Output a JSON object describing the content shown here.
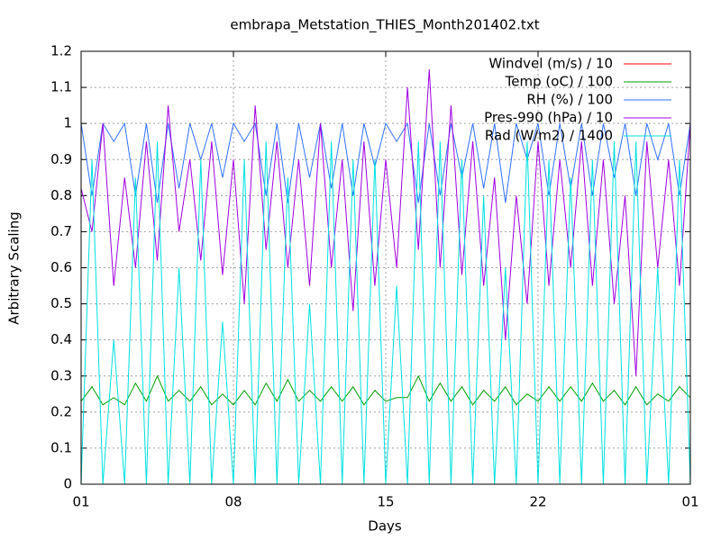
{
  "chart_data": {
    "type": "line",
    "title": "embrapa_Metstation_THIES_Month201402.txt",
    "xlabel": "Days",
    "ylabel": "Arbitrary Scaling",
    "x": [
      0,
      0.5,
      1,
      1.5,
      2,
      2.5,
      3,
      3.5,
      4,
      4.5,
      5,
      5.5,
      6,
      6.5,
      7,
      7.5,
      8,
      8.5,
      9,
      9.5,
      10,
      10.5,
      11,
      11.5,
      12,
      12.5,
      13,
      13.5,
      14,
      14.5,
      15,
      15.5,
      16,
      16.5,
      17,
      17.5,
      18,
      18.5,
      19,
      19.5,
      20,
      20.5,
      21,
      21.5,
      22,
      22.5,
      23,
      23.5,
      24,
      24.5,
      25,
      25.5,
      26,
      26.5,
      27,
      27.5,
      28
    ],
    "xlim": [
      0,
      28
    ],
    "xticks": [
      {
        "value": 0,
        "label": "01"
      },
      {
        "value": 7,
        "label": "08"
      },
      {
        "value": 14,
        "label": "15"
      },
      {
        "value": 21,
        "label": "22"
      },
      {
        "value": 28,
        "label": "01"
      }
    ],
    "ylim": [
      0,
      1.2
    ],
    "yticks": [
      0,
      0.1,
      0.2,
      0.3,
      0.4,
      0.5,
      0.6,
      0.7,
      0.8,
      0.9,
      1,
      1.1,
      1.2
    ],
    "grid": true,
    "legend": "top-right",
    "series": [
      {
        "name": "Windvel (m/s) / 10",
        "color": "#ff0000",
        "values": [
          null,
          null,
          null,
          null,
          null,
          null,
          null,
          null,
          null,
          null,
          null,
          null,
          null,
          null,
          null,
          null,
          null,
          null,
          null,
          null,
          null,
          null,
          null,
          null,
          null,
          null,
          null,
          null,
          null,
          null,
          null,
          null,
          null,
          null,
          null,
          null,
          null,
          null,
          null,
          null,
          null,
          null,
          null,
          null,
          null,
          null,
          null,
          null,
          null,
          null,
          null,
          null,
          null,
          null,
          null,
          null,
          null
        ]
      },
      {
        "name": "Temp (oC) / 100",
        "color": "#00a000",
        "values": [
          0.23,
          0.27,
          0.22,
          0.24,
          0.22,
          0.28,
          0.23,
          0.3,
          0.23,
          0.26,
          0.23,
          0.27,
          0.22,
          0.25,
          0.22,
          0.26,
          0.22,
          0.28,
          0.23,
          0.29,
          0.23,
          0.26,
          0.23,
          0.27,
          0.23,
          0.27,
          0.22,
          0.26,
          0.23,
          0.24,
          0.24,
          0.3,
          0.23,
          0.28,
          0.23,
          0.27,
          0.22,
          0.26,
          0.23,
          0.27,
          0.22,
          0.25,
          0.23,
          0.27,
          0.23,
          0.27,
          0.23,
          0.28,
          0.23,
          0.26,
          0.22,
          0.27,
          0.22,
          0.25,
          0.23,
          0.27,
          0.24
        ]
      },
      {
        "name": "RH (%) / 100",
        "color": "#3070ff",
        "values": [
          1,
          0.8,
          1,
          0.95,
          1,
          0.8,
          1,
          0.78,
          1,
          0.82,
          1,
          0.9,
          1,
          0.85,
          1,
          0.95,
          1,
          0.8,
          1,
          0.78,
          1,
          0.85,
          1,
          0.82,
          1,
          0.8,
          1,
          0.88,
          1,
          0.95,
          1,
          0.78,
          1,
          0.8,
          1,
          0.85,
          1,
          0.82,
          1,
          0.78,
          1,
          0.9,
          1,
          0.8,
          1,
          0.82,
          1,
          0.8,
          1,
          0.85,
          1,
          0.8,
          1,
          0.9,
          1,
          0.8,
          1
        ]
      },
      {
        "name": "Pres-990 (hPa) / 10",
        "color": "#a000e0",
        "values": [
          0.82,
          0.7,
          1,
          0.55,
          0.85,
          0.6,
          0.95,
          0.62,
          1.05,
          0.7,
          0.9,
          0.62,
          0.95,
          0.58,
          0.9,
          0.5,
          1.05,
          0.65,
          0.95,
          0.6,
          0.9,
          0.55,
          1,
          0.6,
          0.9,
          0.48,
          0.95,
          0.55,
          0.9,
          0.6,
          1.1,
          0.65,
          1.15,
          0.6,
          1.05,
          0.58,
          0.95,
          0.55,
          0.85,
          0.4,
          0.8,
          0.5,
          0.95,
          0.55,
          0.9,
          0.6,
          0.95,
          0.55,
          0.9,
          0.5,
          0.8,
          0.3,
          0.95,
          0.6,
          0.9,
          0.55,
          1
        ]
      },
      {
        "name": "Rad (W/m2) / 1400",
        "color": "#00e0e0",
        "values": [
          0,
          0.9,
          0,
          0.4,
          0,
          0.85,
          0,
          0.95,
          0,
          0.6,
          0,
          0.9,
          0,
          0.45,
          0,
          0.9,
          0,
          0.95,
          0,
          0.85,
          0,
          0.5,
          0,
          0.95,
          0,
          0.9,
          0,
          0.9,
          0,
          0.55,
          0,
          0.95,
          0,
          0.95,
          0,
          0.9,
          0,
          0.8,
          0,
          0.6,
          0,
          0.95,
          0,
          0.9,
          0,
          0.85,
          0,
          0.9,
          0,
          0.95,
          0,
          0.95,
          0,
          0.6,
          0,
          0.9,
          0
        ]
      }
    ]
  }
}
